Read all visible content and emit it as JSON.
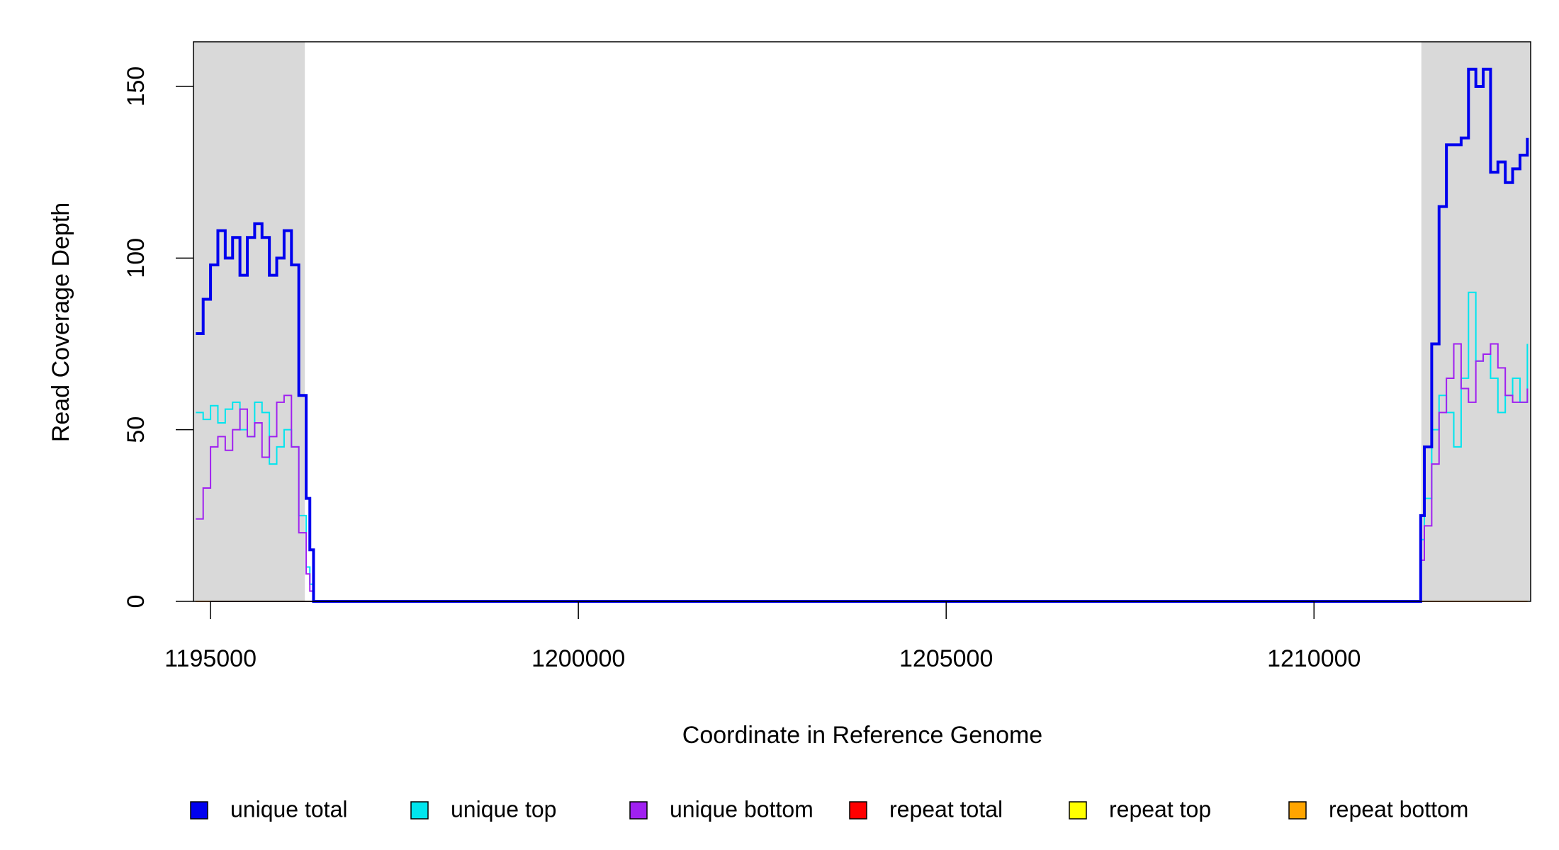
{
  "chart_data": {
    "type": "line",
    "step": true,
    "xlabel": "Coordinate in Reference Genome",
    "ylabel": "Read Coverage Depth",
    "x": [
      1194800,
      1194900,
      1195000,
      1195100,
      1195200,
      1195300,
      1195400,
      1195500,
      1195600,
      1195700,
      1195800,
      1195900,
      1196000,
      1196100,
      1196200,
      1196300,
      1196350,
      1196400,
      1211400,
      1211450,
      1211500,
      1211600,
      1211700,
      1211800,
      1211900,
      1212000,
      1212100,
      1212200,
      1212300,
      1212400,
      1212500,
      1212600,
      1212700,
      1212800,
      1212900
    ],
    "series": [
      {
        "name": "repeat total",
        "color": "#ff0000",
        "values": [
          0,
          0,
          0,
          0,
          0,
          0,
          0,
          0,
          0,
          0,
          0,
          0,
          0,
          0,
          0,
          0,
          0,
          0,
          0,
          0,
          0,
          0,
          0,
          0,
          0,
          0,
          0,
          0,
          0,
          0,
          0,
          0,
          0,
          0,
          0
        ]
      },
      {
        "name": "repeat top",
        "color": "#ffff00",
        "values": [
          0,
          0,
          0,
          0,
          0,
          0,
          0,
          0,
          0,
          0,
          0,
          0,
          0,
          0,
          0,
          0,
          0,
          0,
          0,
          0,
          0,
          0,
          0,
          0,
          0,
          0,
          0,
          0,
          0,
          0,
          0,
          0,
          0,
          0,
          0
        ]
      },
      {
        "name": "repeat bottom",
        "color": "#ffa500",
        "values": [
          0,
          0,
          0,
          0,
          0,
          0,
          0,
          0,
          0,
          0,
          0,
          0,
          0,
          0,
          0,
          0,
          0,
          0,
          0,
          0,
          0,
          0,
          0,
          0,
          0,
          0,
          0,
          0,
          0,
          0,
          0,
          0,
          0,
          0,
          0
        ]
      },
      {
        "name": "unique top",
        "color": "#00e5ee",
        "values": [
          55,
          53,
          57,
          52,
          56,
          58,
          50,
          48,
          58,
          55,
          40,
          45,
          50,
          45,
          25,
          10,
          5,
          0,
          0,
          18,
          30,
          50,
          60,
          55,
          45,
          65,
          90,
          70,
          72,
          65,
          55,
          60,
          65,
          58,
          75
        ]
      },
      {
        "name": "unique bottom",
        "color": "#a020f0",
        "values": [
          24,
          33,
          45,
          48,
          44,
          50,
          56,
          48,
          52,
          42,
          48,
          58,
          60,
          45,
          20,
          8,
          3,
          0,
          0,
          12,
          22,
          40,
          55,
          65,
          75,
          62,
          58,
          70,
          72,
          75,
          68,
          60,
          58,
          58,
          62
        ]
      },
      {
        "name": "unique total",
        "color": "#0000ee",
        "values": [
          78,
          88,
          98,
          108,
          100,
          106,
          95,
          106,
          110,
          106,
          95,
          100,
          108,
          98,
          60,
          30,
          15,
          0,
          0,
          25,
          45,
          75,
          115,
          133,
          133,
          135,
          155,
          150,
          155,
          125,
          128,
          122,
          126,
          130,
          135
        ]
      }
    ],
    "legend_order": [
      5,
      3,
      4,
      0,
      1,
      2
    ],
    "highlight_regions": [
      [
        1194768,
        1196282
      ],
      [
        1211459,
        1212945
      ]
    ],
    "highlight_color": "#d9d9d9",
    "xlim": [
      1194768,
      1212945
    ],
    "xticks": [
      1195000,
      1200000,
      1205000,
      1210000
    ],
    "ylim": [
      0,
      163
    ],
    "yticks": [
      0,
      50,
      100,
      150
    ]
  }
}
